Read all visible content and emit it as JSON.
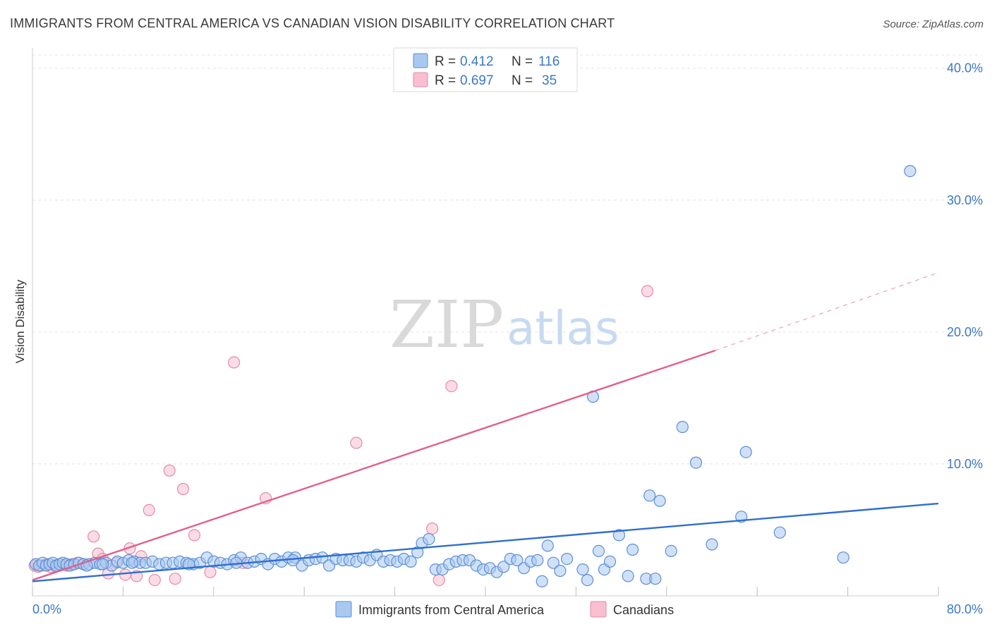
{
  "header": {
    "title": "IMMIGRANTS FROM CENTRAL AMERICA VS CANADIAN VISION DISABILITY CORRELATION CHART",
    "source": "Source: ZipAtlas.com"
  },
  "watermark": {
    "zip": "ZIP",
    "atlas": "atlas"
  },
  "legend": {
    "rows": [
      {
        "r_label": "R =",
        "r_value": "0.412",
        "n_label": "N =",
        "n_value": "116",
        "color": "#a9c8f0"
      },
      {
        "r_label": "R =",
        "r_value": "0.697",
        "n_label": "N =",
        "n_value": "35",
        "color": "#f8bfd0"
      }
    ]
  },
  "chart_data": {
    "type": "scatter",
    "title": "IMMIGRANTS FROM CENTRAL AMERICA VS CANADIAN VISION DISABILITY CORRELATION CHART",
    "xlabel": "",
    "ylabel": "Vision Disability",
    "xlim": [
      0,
      80
    ],
    "ylim": [
      0,
      41
    ],
    "x_ticks": [
      "0.0%",
      "80.0%"
    ],
    "y_ticks": [
      {
        "value": 10,
        "label": "10.0%"
      },
      {
        "value": 20,
        "label": "20.0%"
      },
      {
        "value": 30,
        "label": "30.0%"
      },
      {
        "value": 40,
        "label": "40.0%"
      }
    ],
    "grid": true,
    "legend_position": "bottom",
    "series": [
      {
        "name": "Immigrants from Central America",
        "color": "#a9c8f0",
        "stroke": "#5b8fd6",
        "trend": {
          "x": [
            0,
            80
          ],
          "y": [
            1.1,
            7.0
          ],
          "color": "#2f6fce"
        },
        "points": [
          [
            0.3,
            2.4
          ],
          [
            0.6,
            2.3
          ],
          [
            0.9,
            2.5
          ],
          [
            1.2,
            2.3
          ],
          [
            1.5,
            2.4
          ],
          [
            1.8,
            2.5
          ],
          [
            2.1,
            2.3
          ],
          [
            2.4,
            2.4
          ],
          [
            2.7,
            2.5
          ],
          [
            3.0,
            2.4
          ],
          [
            3.3,
            2.3
          ],
          [
            3.7,
            2.4
          ],
          [
            4.1,
            2.5
          ],
          [
            4.5,
            2.4
          ],
          [
            5.0,
            2.4
          ],
          [
            5.5,
            2.5
          ],
          [
            6.0,
            2.4
          ],
          [
            6.5,
            2.5
          ],
          [
            7.0,
            2.3
          ],
          [
            7.5,
            2.6
          ],
          [
            8.0,
            2.5
          ],
          [
            8.5,
            2.7
          ],
          [
            9.0,
            2.6
          ],
          [
            9.5,
            2.5
          ],
          [
            10.0,
            2.5
          ],
          [
            10.6,
            2.6
          ],
          [
            11.2,
            2.4
          ],
          [
            11.8,
            2.5
          ],
          [
            12.4,
            2.5
          ],
          [
            13.0,
            2.6
          ],
          [
            13.6,
            2.5
          ],
          [
            14.2,
            2.4
          ],
          [
            14.8,
            2.5
          ],
          [
            15.4,
            2.9
          ],
          [
            16.0,
            2.6
          ],
          [
            16.6,
            2.5
          ],
          [
            17.2,
            2.4
          ],
          [
            17.8,
            2.7
          ],
          [
            18.4,
            2.9
          ],
          [
            19.0,
            2.5
          ],
          [
            19.6,
            2.6
          ],
          [
            20.2,
            2.8
          ],
          [
            20.8,
            2.4
          ],
          [
            21.4,
            2.8
          ],
          [
            22.0,
            2.6
          ],
          [
            22.6,
            2.9
          ],
          [
            23.2,
            2.9
          ],
          [
            23.8,
            2.3
          ],
          [
            24.4,
            2.7
          ],
          [
            25.0,
            2.8
          ],
          [
            25.6,
            2.9
          ],
          [
            26.2,
            2.3
          ],
          [
            26.8,
            2.8
          ],
          [
            27.4,
            2.7
          ],
          [
            28.0,
            2.7
          ],
          [
            28.6,
            2.6
          ],
          [
            29.2,
            2.9
          ],
          [
            29.8,
            2.7
          ],
          [
            30.4,
            3.1
          ],
          [
            31.0,
            2.6
          ],
          [
            31.6,
            2.7
          ],
          [
            32.2,
            2.6
          ],
          [
            32.8,
            2.8
          ],
          [
            33.4,
            2.6
          ],
          [
            34.0,
            3.3
          ],
          [
            34.4,
            4.0
          ],
          [
            35.0,
            4.3
          ],
          [
            35.6,
            2.0
          ],
          [
            36.2,
            2.0
          ],
          [
            36.8,
            2.4
          ],
          [
            37.4,
            2.6
          ],
          [
            38.0,
            2.7
          ],
          [
            38.6,
            2.7
          ],
          [
            39.2,
            2.3
          ],
          [
            39.8,
            2.0
          ],
          [
            40.4,
            2.1
          ],
          [
            41.0,
            1.8
          ],
          [
            41.6,
            2.2
          ],
          [
            42.2,
            2.8
          ],
          [
            42.8,
            2.7
          ],
          [
            43.4,
            2.1
          ],
          [
            44.0,
            2.6
          ],
          [
            44.6,
            2.7
          ],
          [
            45.0,
            1.1
          ],
          [
            45.5,
            3.8
          ],
          [
            46.0,
            2.5
          ],
          [
            46.6,
            1.9
          ],
          [
            47.2,
            2.8
          ],
          [
            48.6,
            2.0
          ],
          [
            49.0,
            1.2
          ],
          [
            50.0,
            3.4
          ],
          [
            50.5,
            2.0
          ],
          [
            51.0,
            2.6
          ],
          [
            51.8,
            4.6
          ],
          [
            52.6,
            1.5
          ],
          [
            53.0,
            3.5
          ],
          [
            54.2,
            1.3
          ],
          [
            55.0,
            1.3
          ],
          [
            54.5,
            7.6
          ],
          [
            55.4,
            7.2
          ],
          [
            56.4,
            3.4
          ],
          [
            57.4,
            12.8
          ],
          [
            58.6,
            10.1
          ],
          [
            60.0,
            3.9
          ],
          [
            62.6,
            6.0
          ],
          [
            63.0,
            10.9
          ],
          [
            66.0,
            4.8
          ],
          [
            71.6,
            2.9
          ],
          [
            77.5,
            32.2
          ],
          [
            49.5,
            15.1
          ],
          [
            13.8,
            2.4
          ],
          [
            8.8,
            2.5
          ],
          [
            4.8,
            2.3
          ],
          [
            6.2,
            2.4
          ],
          [
            23.0,
            2.7
          ],
          [
            18.0,
            2.5
          ]
        ]
      },
      {
        "name": "Canadians",
        "color": "#f8bfd0",
        "stroke": "#e58aa8",
        "trend": {
          "x": [
            0,
            60.3
          ],
          "y": [
            1.2,
            18.6
          ],
          "dashed_to": {
            "x": 80,
            "y": 24.5
          },
          "color": "#e0608a"
        },
        "points": [
          [
            0.2,
            2.3
          ],
          [
            0.5,
            2.2
          ],
          [
            0.8,
            2.3
          ],
          [
            1.2,
            2.4
          ],
          [
            1.6,
            2.2
          ],
          [
            2.0,
            2.3
          ],
          [
            2.5,
            2.4
          ],
          [
            3.0,
            2.3
          ],
          [
            3.5,
            2.4
          ],
          [
            4.0,
            2.5
          ],
          [
            4.5,
            2.4
          ],
          [
            5.4,
            4.5
          ],
          [
            5.8,
            3.2
          ],
          [
            6.2,
            2.8
          ],
          [
            6.7,
            1.7
          ],
          [
            7.4,
            2.5
          ],
          [
            8.2,
            1.6
          ],
          [
            8.6,
            3.6
          ],
          [
            9.2,
            1.5
          ],
          [
            9.6,
            3.0
          ],
          [
            10.3,
            6.5
          ],
          [
            10.8,
            1.2
          ],
          [
            12.1,
            9.5
          ],
          [
            12.6,
            1.3
          ],
          [
            13.3,
            8.1
          ],
          [
            14.3,
            4.6
          ],
          [
            15.7,
            1.8
          ],
          [
            17.8,
            17.7
          ],
          [
            18.6,
            2.5
          ],
          [
            20.6,
            7.4
          ],
          [
            28.6,
            11.6
          ],
          [
            35.3,
            5.1
          ],
          [
            35.9,
            1.2
          ],
          [
            37.0,
            15.9
          ],
          [
            54.3,
            23.1
          ]
        ]
      }
    ]
  }
}
